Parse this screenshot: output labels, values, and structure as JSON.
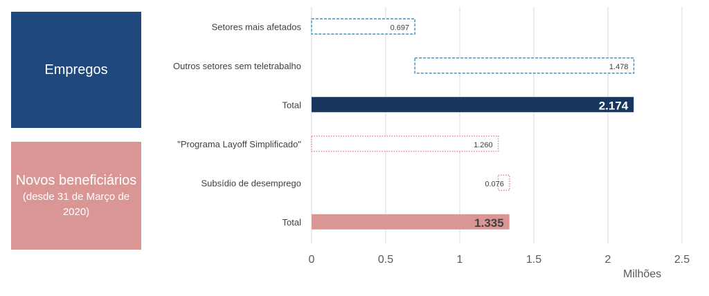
{
  "groups": {
    "empregos": {
      "title": "Empregos"
    },
    "novos": {
      "title": "Novos beneficiários",
      "subtitle": "(desde 31 de Março de 2020)"
    }
  },
  "colors": {
    "empregos_outline": "#2e9bdc",
    "empregos_total": "#17375e",
    "novos_outline": "#e08a8a",
    "novos_total": "#da9694",
    "grid": "#d9d9d9"
  },
  "chart_data": {
    "type": "bar",
    "orientation": "horizontal",
    "stacked_waterfall": true,
    "unit_label": "Milhões",
    "xlim": [
      0,
      2.5
    ],
    "xticks": [
      "0",
      "0.5",
      "1",
      "1.5",
      "2",
      "2.5"
    ],
    "xtick_values": [
      0,
      0.5,
      1,
      1.5,
      2,
      2.5
    ],
    "grid": true,
    "bars": [
      {
        "category": "Setores mais afetados",
        "start": 0,
        "value": 0.697,
        "label": "0.697",
        "group": "empregos",
        "style": "dashed"
      },
      {
        "category": "Outros setores sem teletrabalho",
        "start": 0.697,
        "value": 1.478,
        "label": "1.478",
        "group": "empregos",
        "style": "dashed"
      },
      {
        "category": "Total",
        "start": 0,
        "value": 2.174,
        "label": "2.174",
        "group": "empregos",
        "style": "solid"
      },
      {
        "category": "\"Programa Layoff Simplificado\"",
        "start": 0,
        "value": 1.26,
        "label": "1.260",
        "group": "novos",
        "style": "dotted"
      },
      {
        "category": "Subsídio de desemprego",
        "start": 1.26,
        "value": 0.076,
        "label": "0.076",
        "group": "novos",
        "style": "dotted"
      },
      {
        "category": "Total",
        "start": 0,
        "value": 1.335,
        "label": "1.335",
        "group": "novos",
        "style": "solid"
      }
    ]
  }
}
